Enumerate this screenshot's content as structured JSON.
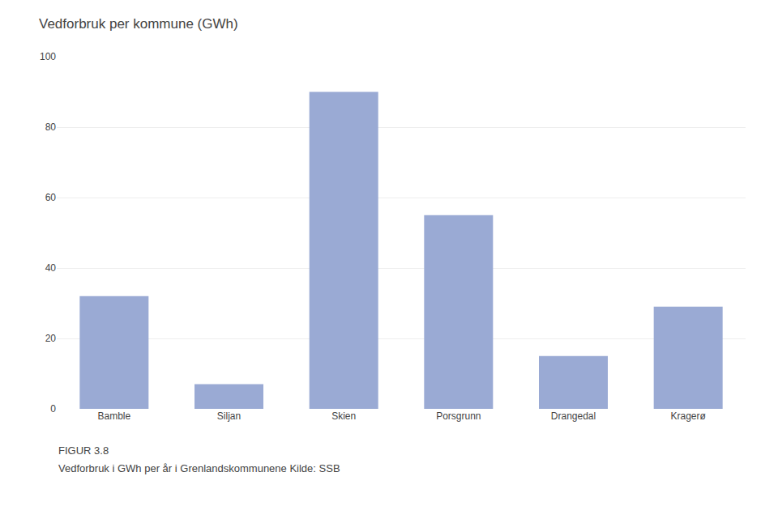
{
  "chart_data": {
    "type": "bar",
    "title": "Vedforbruk per kommune (GWh)",
    "categories": [
      "Bamble",
      "Siljan",
      "Skien",
      "Porsgrunn",
      "Drangedal",
      "Kragerø"
    ],
    "values": [
      32,
      7,
      90,
      55,
      15,
      29
    ],
    "color": "#9aaad4",
    "ylim": [
      0,
      100
    ],
    "yticks": [
      0,
      20,
      40,
      60,
      80,
      100
    ],
    "grid": true,
    "annotations": [
      "FIGUR 3.8",
      "Vedforbruk i GWh per år i Grenlandskommunene Kilde: SSB"
    ]
  }
}
